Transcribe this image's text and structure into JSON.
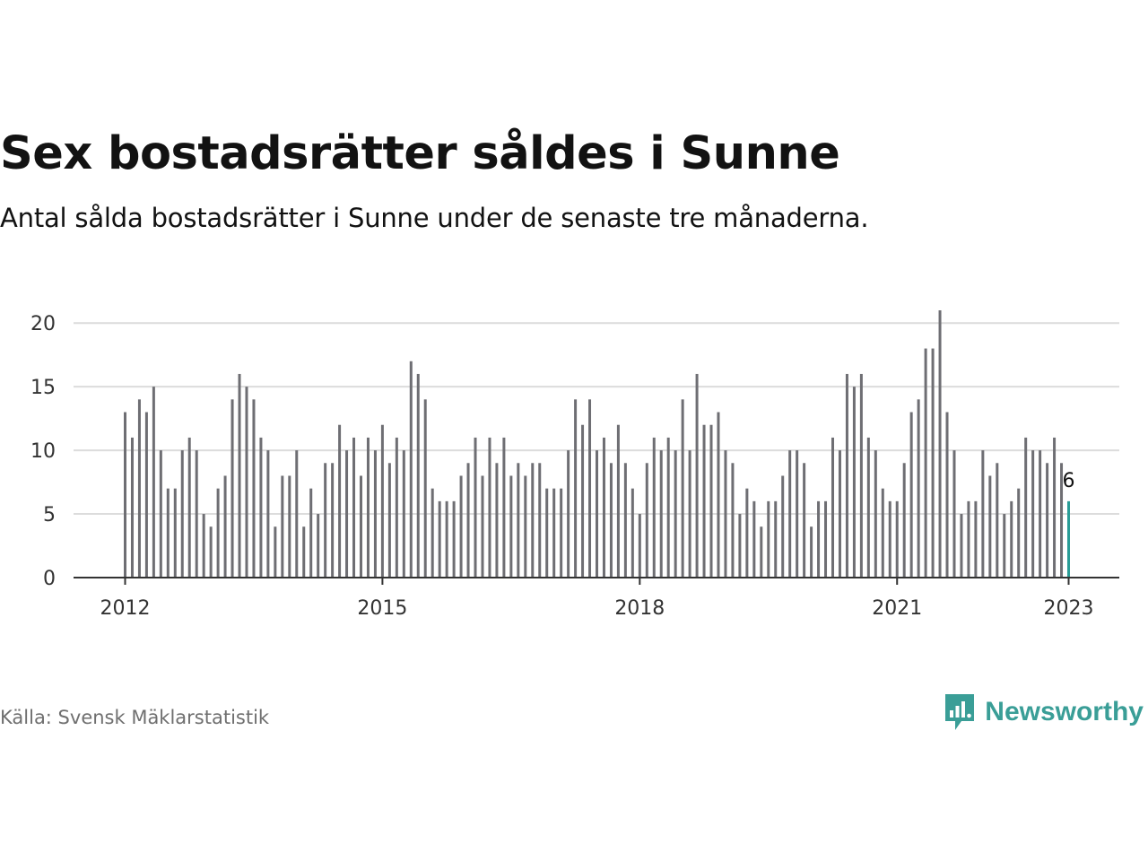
{
  "title": "Sex bostadsrätter såldes i Sunne",
  "subtitle": "Antal sålda bostadsrätter i Sunne under de senaste tre månaderna.",
  "source": "Källa: Svensk Mäklarstatistik",
  "brand": {
    "name": "Newsworthy",
    "icon": "newsworthy-logo-icon",
    "color": "#3a9e97"
  },
  "chart_data": {
    "type": "bar",
    "x_start": "2012-01",
    "x_end": "2023-01",
    "bar_color": "#6e6e73",
    "highlight_color": "#2a9d97",
    "highlight_label": "6",
    "ylim": [
      0,
      21
    ],
    "y_ticks": [
      "0",
      "5",
      "10",
      "15",
      "20"
    ],
    "x_ticks": [
      {
        "label": "2012",
        "month": "2012-01"
      },
      {
        "label": "2015",
        "month": "2015-01"
      },
      {
        "label": "2018",
        "month": "2018-01"
      },
      {
        "label": "2021",
        "month": "2021-01"
      },
      {
        "label": "2023",
        "month": "2023-01"
      }
    ],
    "grid": true,
    "values": [
      13,
      11,
      14,
      13,
      15,
      10,
      7,
      7,
      10,
      11,
      10,
      5,
      4,
      7,
      8,
      14,
      16,
      15,
      14,
      11,
      10,
      4,
      8,
      8,
      10,
      4,
      7,
      5,
      9,
      9,
      12,
      10,
      11,
      8,
      11,
      10,
      12,
      9,
      11,
      10,
      17,
      16,
      14,
      7,
      6,
      6,
      6,
      8,
      9,
      11,
      8,
      11,
      9,
      11,
      8,
      9,
      8,
      9,
      9,
      7,
      7,
      7,
      10,
      14,
      12,
      14,
      10,
      11,
      9,
      12,
      9,
      7,
      5,
      9,
      11,
      10,
      11,
      10,
      14,
      10,
      16,
      12,
      12,
      13,
      10,
      9,
      5,
      7,
      6,
      4,
      6,
      6,
      8,
      10,
      10,
      9,
      4,
      6,
      6,
      11,
      10,
      16,
      15,
      16,
      11,
      10,
      7,
      6,
      6,
      9,
      13,
      14,
      18,
      18,
      21,
      13,
      10,
      5,
      6,
      6,
      10,
      8,
      9,
      5,
      6,
      7,
      11,
      10,
      10,
      9,
      11,
      9,
      6
    ]
  }
}
